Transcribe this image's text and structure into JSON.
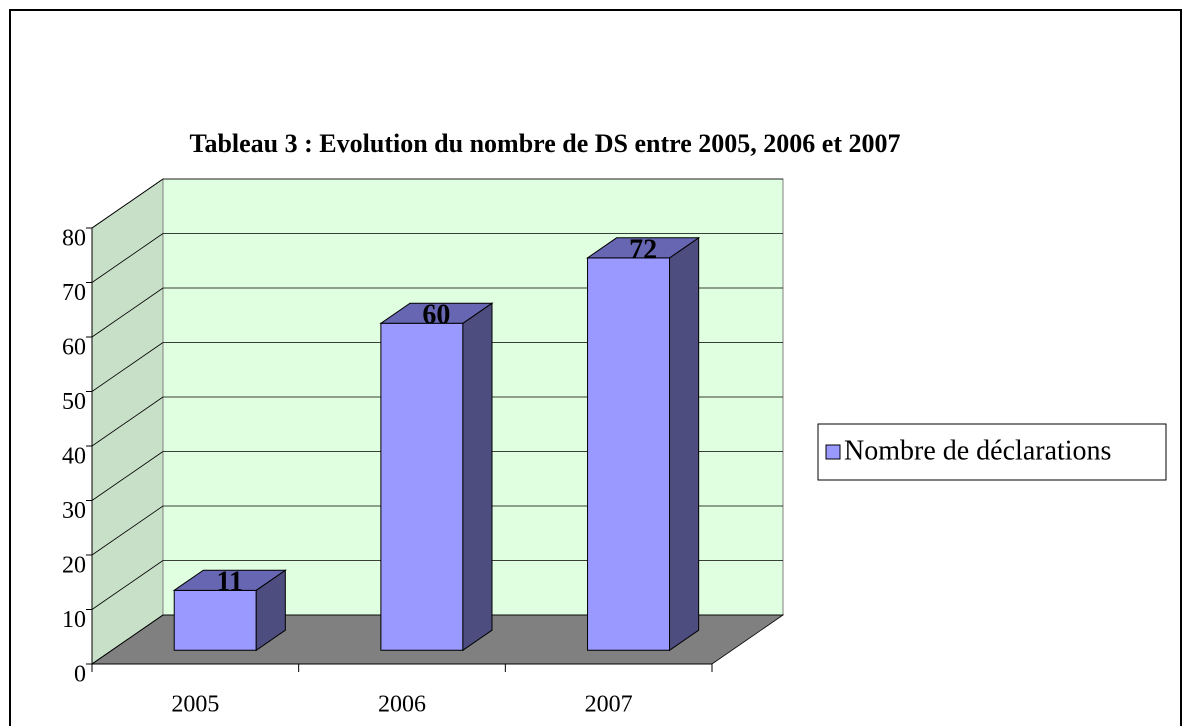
{
  "chart_data": {
    "type": "bar3d",
    "title": "Tableau 3 : Evolution du nombre de DS entre 2005, 2006 et 2007",
    "categories": [
      "2005",
      "2006",
      "2007"
    ],
    "series": [
      {
        "name": "Nombre de déclarations",
        "color": "#9999ff",
        "values": [
          11,
          60,
          72
        ]
      }
    ],
    "ylim": [
      0,
      80
    ],
    "yticks": [
      0,
      10,
      20,
      30,
      40,
      50,
      60,
      70,
      80
    ],
    "grid": true,
    "legend": "right"
  }
}
